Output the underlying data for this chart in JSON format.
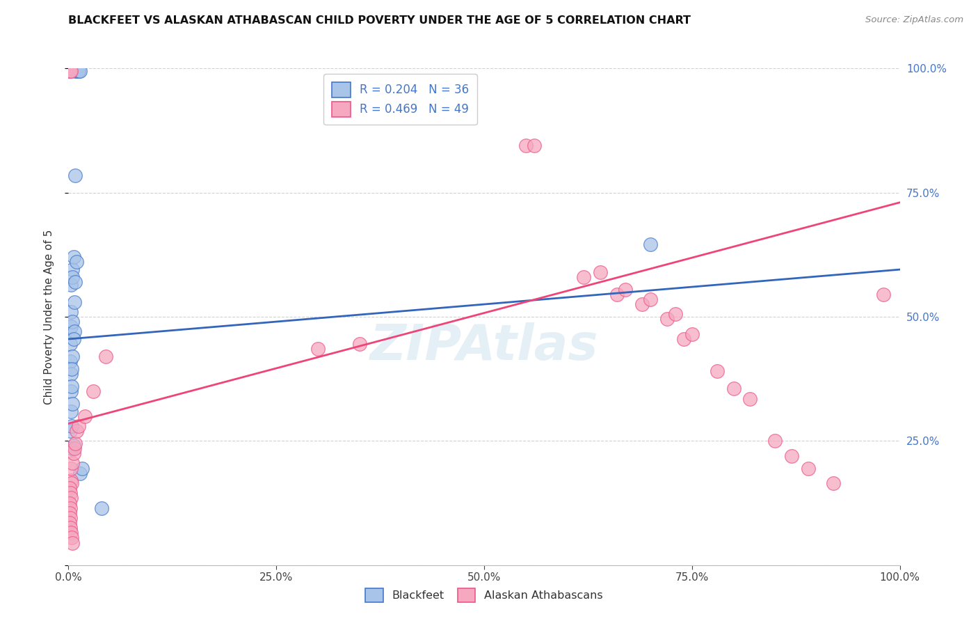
{
  "title": "BLACKFEET VS ALASKAN ATHABASCAN CHILD POVERTY UNDER THE AGE OF 5 CORRELATION CHART",
  "source": "Source: ZipAtlas.com",
  "ylabel": "Child Poverty Under the Age of 5",
  "watermark": "ZIPAtlas",
  "blue_label": "Blackfeet",
  "pink_label": "Alaskan Athabascans",
  "blue_R": 0.204,
  "blue_N": 36,
  "pink_R": 0.469,
  "pink_N": 49,
  "blue_color": "#A8C4E8",
  "pink_color": "#F5A8C0",
  "blue_edge_color": "#4477CC",
  "pink_edge_color": "#EE5588",
  "blue_line_color": "#3366BB",
  "pink_line_color": "#EE4477",
  "background_color": "#FFFFFF",
  "right_axis_color": "#4477CC",
  "blue_points": [
    [
      0.001,
      0.995
    ],
    [
      0.008,
      0.995
    ],
    [
      0.01,
      0.995
    ],
    [
      0.012,
      0.995
    ],
    [
      0.012,
      0.995
    ],
    [
      0.014,
      0.995
    ],
    [
      0.008,
      0.785
    ],
    [
      0.005,
      0.595
    ],
    [
      0.006,
      0.62
    ],
    [
      0.01,
      0.61
    ],
    [
      0.003,
      0.565
    ],
    [
      0.005,
      0.58
    ],
    [
      0.008,
      0.57
    ],
    [
      0.003,
      0.51
    ],
    [
      0.007,
      0.53
    ],
    [
      0.003,
      0.48
    ],
    [
      0.005,
      0.49
    ],
    [
      0.007,
      0.47
    ],
    [
      0.002,
      0.445
    ],
    [
      0.006,
      0.455
    ],
    [
      0.002,
      0.41
    ],
    [
      0.005,
      0.42
    ],
    [
      0.003,
      0.385
    ],
    [
      0.004,
      0.395
    ],
    [
      0.003,
      0.35
    ],
    [
      0.004,
      0.36
    ],
    [
      0.003,
      0.31
    ],
    [
      0.005,
      0.325
    ],
    [
      0.002,
      0.27
    ],
    [
      0.004,
      0.28
    ],
    [
      0.004,
      0.235
    ],
    [
      0.006,
      0.24
    ],
    [
      0.014,
      0.185
    ],
    [
      0.016,
      0.195
    ],
    [
      0.04,
      0.115
    ],
    [
      0.7,
      0.645
    ]
  ],
  "pink_points": [
    [
      0.001,
      0.995
    ],
    [
      0.002,
      0.995
    ],
    [
      0.003,
      0.995
    ],
    [
      0.003,
      0.17
    ],
    [
      0.004,
      0.165
    ],
    [
      0.001,
      0.155
    ],
    [
      0.002,
      0.145
    ],
    [
      0.003,
      0.135
    ],
    [
      0.001,
      0.125
    ],
    [
      0.002,
      0.115
    ],
    [
      0.001,
      0.105
    ],
    [
      0.002,
      0.095
    ],
    [
      0.001,
      0.085
    ],
    [
      0.002,
      0.075
    ],
    [
      0.003,
      0.065
    ],
    [
      0.004,
      0.055
    ],
    [
      0.005,
      0.045
    ],
    [
      0.003,
      0.195
    ],
    [
      0.005,
      0.205
    ],
    [
      0.006,
      0.225
    ],
    [
      0.007,
      0.235
    ],
    [
      0.008,
      0.245
    ],
    [
      0.01,
      0.27
    ],
    [
      0.012,
      0.28
    ],
    [
      0.02,
      0.3
    ],
    [
      0.03,
      0.35
    ],
    [
      0.045,
      0.42
    ],
    [
      0.3,
      0.435
    ],
    [
      0.35,
      0.445
    ],
    [
      0.55,
      0.845
    ],
    [
      0.56,
      0.845
    ],
    [
      0.62,
      0.58
    ],
    [
      0.64,
      0.59
    ],
    [
      0.66,
      0.545
    ],
    [
      0.67,
      0.555
    ],
    [
      0.69,
      0.525
    ],
    [
      0.7,
      0.535
    ],
    [
      0.72,
      0.495
    ],
    [
      0.73,
      0.505
    ],
    [
      0.74,
      0.455
    ],
    [
      0.75,
      0.465
    ],
    [
      0.78,
      0.39
    ],
    [
      0.8,
      0.355
    ],
    [
      0.82,
      0.335
    ],
    [
      0.85,
      0.25
    ],
    [
      0.87,
      0.22
    ],
    [
      0.89,
      0.195
    ],
    [
      0.92,
      0.165
    ],
    [
      0.98,
      0.545
    ]
  ]
}
